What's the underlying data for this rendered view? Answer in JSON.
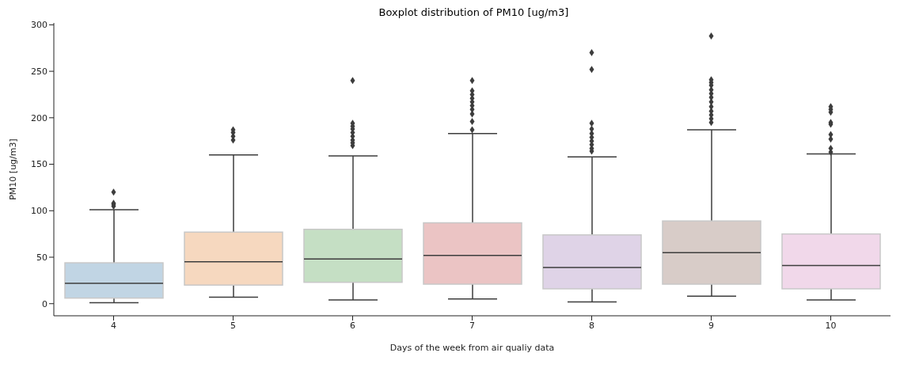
{
  "chart_data": {
    "type": "box",
    "title": "Boxplot distribution of PM10 [ug/m3]",
    "xlabel": "Days of the week from air qualiy data",
    "ylabel": "PM10 [ug/m3]",
    "categories": [
      "4",
      "5",
      "6",
      "7",
      "8",
      "9",
      "10"
    ],
    "colors": [
      "#c1d5e4",
      "#f6d8bf",
      "#c5dfc4",
      "#ebc4c4",
      "#dfd3e7",
      "#d8ccc8",
      "#f1d8ea"
    ],
    "boxes": [
      {
        "low": 1,
        "q1": 6,
        "median": 22,
        "q3": 44,
        "high": 101,
        "outliers": [
          105,
          107,
          108,
          120
        ]
      },
      {
        "low": 7,
        "q1": 20,
        "median": 45,
        "q3": 77,
        "high": 160,
        "outliers": [
          176,
          180,
          184,
          187
        ]
      },
      {
        "low": 4,
        "q1": 23,
        "median": 48,
        "q3": 80,
        "high": 159,
        "outliers": [
          170,
          173,
          176,
          180,
          184,
          188,
          191,
          194,
          240
        ]
      },
      {
        "low": 5,
        "q1": 21,
        "median": 52,
        "q3": 87,
        "high": 183,
        "outliers": [
          187,
          196,
          204,
          209,
          213,
          217,
          221,
          225,
          229,
          240
        ]
      },
      {
        "low": 2,
        "q1": 16,
        "median": 39,
        "q3": 74,
        "high": 158,
        "outliers": [
          164,
          167,
          171,
          175,
          179,
          183,
          188,
          194,
          252,
          270
        ]
      },
      {
        "low": 8,
        "q1": 21,
        "median": 55,
        "q3": 89,
        "high": 187,
        "outliers": [
          195,
          199,
          203,
          207,
          212,
          217,
          222,
          226,
          230,
          235,
          238,
          241,
          288
        ]
      },
      {
        "low": 4,
        "q1": 16,
        "median": 41,
        "q3": 75,
        "high": 161,
        "outliers": [
          163,
          167,
          177,
          182,
          193,
          195,
          206,
          209,
          212
        ]
      }
    ],
    "ylim": [
      -13,
      302
    ],
    "yticks": [
      0,
      50,
      100,
      150,
      200,
      250,
      300
    ],
    "grid": false,
    "legend": false
  }
}
